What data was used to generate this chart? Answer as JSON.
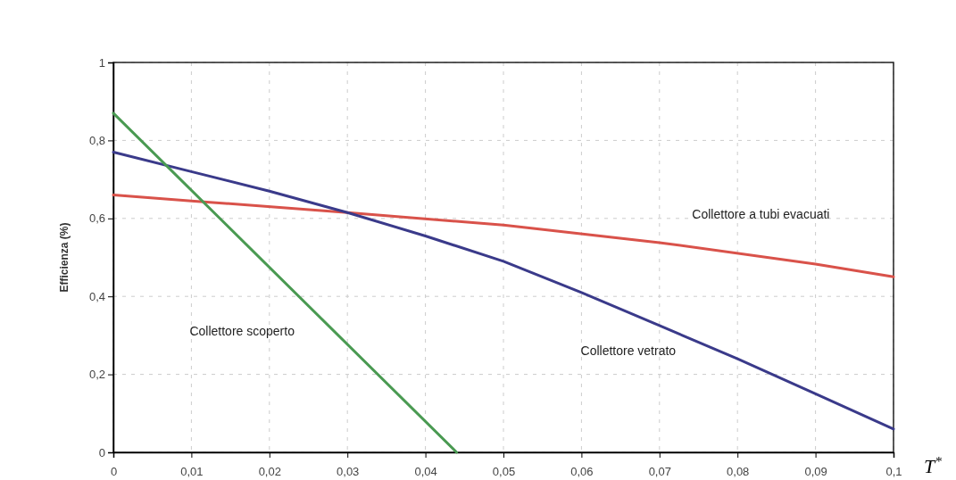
{
  "chart_data": {
    "type": "line",
    "xlabel": "T$^{*}$",
    "ylabel": "Efficienza (%)",
    "xlim": [
      0,
      0.1
    ],
    "ylim": [
      0,
      1
    ],
    "xticks": [
      0,
      {
        "value": 0.01,
        "label": "0,01"
      },
      {
        "value": 0.02,
        "label": "0,02"
      },
      {
        "value": 0.03,
        "label": "0,03"
      },
      {
        "value": 0.04,
        "label": "0,04"
      },
      {
        "value": 0.05,
        "label": "0,05"
      },
      {
        "value": 0.06,
        "label": "0,06"
      },
      {
        "value": 0.07,
        "label": "0,07"
      },
      {
        "value": 0.08,
        "label": "0,08"
      },
      {
        "value": 0.09,
        "label": "0,09"
      },
      {
        "value": 0.1,
        "label": "0,1"
      }
    ],
    "yticks": [
      0,
      {
        "value": 0.2,
        "label": "0,2"
      },
      {
        "value": 0.4,
        "label": "0,4"
      },
      {
        "value": 0.6,
        "label": "0,6"
      },
      {
        "value": 0.8,
        "label": "0,8"
      },
      1
    ],
    "grid": true,
    "line_style": "solid",
    "marker": "none",
    "series": [
      {
        "name": "Collettore a tubi evacuati",
        "color": "#d9524a",
        "x": [
          0,
          0.01,
          0.03,
          0.05,
          0.07,
          0.09,
          0.1
        ],
        "values": [
          0.66,
          0.645,
          0.615,
          0.583,
          0.538,
          0.483,
          0.45
        ]
      },
      {
        "name": "Collettore vetrato",
        "color": "#3a3a8a",
        "x": [
          0,
          0.01,
          0.02,
          0.03,
          0.04,
          0.05,
          0.06,
          0.07,
          0.08,
          0.09,
          0.1
        ],
        "values": [
          0.77,
          0.72,
          0.67,
          0.615,
          0.555,
          0.49,
          0.41,
          0.325,
          0.24,
          0.15,
          0.06
        ]
      },
      {
        "name": "Collettore scoperto",
        "color": "#4a9a52",
        "x": [
          0,
          0.044
        ],
        "values": [
          0.87,
          0
        ]
      }
    ]
  }
}
